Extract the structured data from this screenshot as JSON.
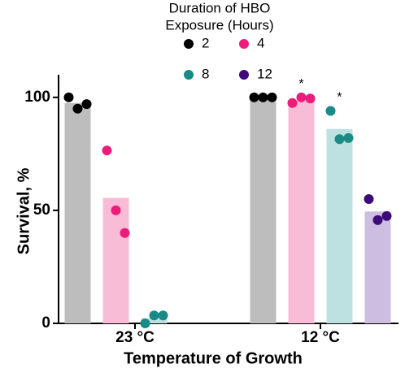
{
  "chart_data": {
    "type": "bar",
    "legend_title": [
      "Duration of HBO",
      "Exposure (Hours)"
    ],
    "x_label": "Temperature of Growth",
    "y_label": "Survival, %",
    "categories": [
      "23 °C",
      "12 °C"
    ],
    "ylim": [
      0,
      110
    ],
    "yticks": [
      0,
      50,
      100
    ],
    "series": [
      {
        "name": "2",
        "color": "#000000",
        "bar_color": "#bdbdbd",
        "values": [
          97.5,
          100
        ],
        "points": [
          [
            100,
            95,
            97
          ],
          [
            100,
            100,
            100
          ]
        ]
      },
      {
        "name": "4",
        "color": "#ec1c7c",
        "bar_color": "#f9bcd6",
        "values": [
          55.5,
          98.5
        ],
        "points": [
          [
            76.5,
            50,
            40
          ],
          [
            97.5,
            100,
            99.5
          ]
        ],
        "significance": [
          null,
          "*"
        ]
      },
      {
        "name": "8",
        "color": "#1a8a86",
        "bar_color": "#bde0e0",
        "values": [
          2.3,
          86
        ],
        "points": [
          [
            0,
            3.5,
            3.5
          ],
          [
            94,
            81.5,
            82
          ]
        ],
        "significance": [
          null,
          "*"
        ]
      },
      {
        "name": "12",
        "color": "#3d0a7a",
        "bar_color": "#cdbde0",
        "values": [
          null,
          49.5
        ],
        "points": [
          null,
          [
            55,
            45.7,
            47.5
          ]
        ]
      }
    ]
  }
}
